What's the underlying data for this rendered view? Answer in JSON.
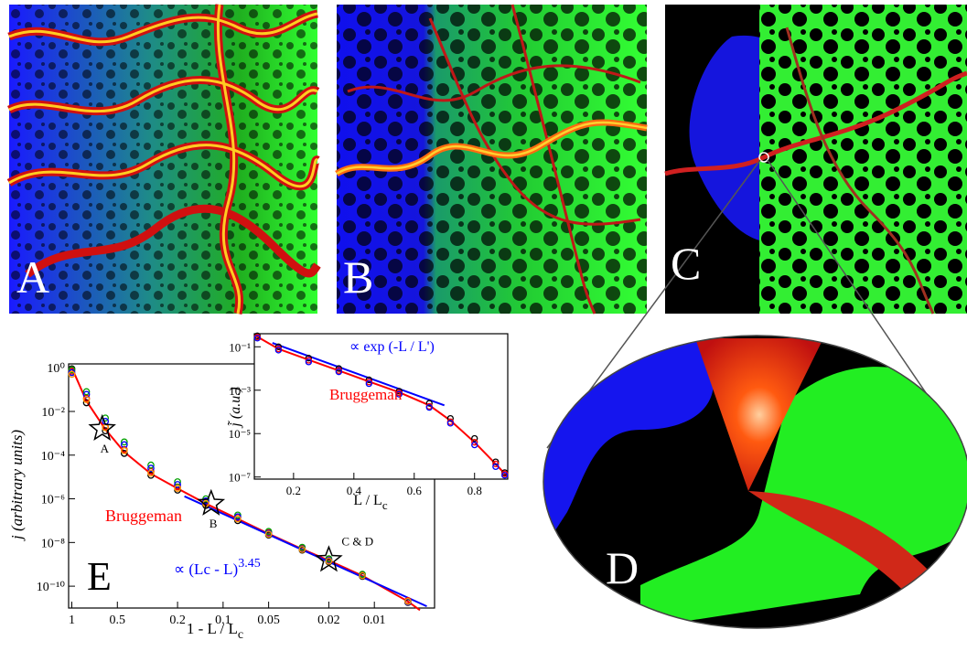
{
  "panels": [
    {
      "label": "A"
    },
    {
      "label": "B"
    },
    {
      "label": "C"
    },
    {
      "label": "D"
    }
  ],
  "chart_data": [
    {
      "type": "scatter",
      "panel_label": "E",
      "xlog": true,
      "ylog": true,
      "xlabel": {
        "text": "1 - L / L",
        "subscript": "c"
      },
      "ylabel": "j  (arbitrary units)",
      "xlim": [
        1.05,
        0.004
      ],
      "ylim": [
        1e-11,
        1.5
      ],
      "xticks": [
        1,
        0.5,
        0.2,
        0.1,
        0.05,
        0.02,
        0.01
      ],
      "yticks": [
        {
          "value": 1,
          "label": "10⁰"
        },
        {
          "value": 0.01,
          "label": "10⁻²"
        },
        {
          "value": 0.0001,
          "label": "10⁻⁴"
        },
        {
          "value": 1e-06,
          "label": "10⁻⁶"
        },
        {
          "value": 1e-08,
          "label": "10⁻⁸"
        },
        {
          "value": 1e-10,
          "label": "10⁻¹⁰"
        }
      ],
      "x": [
        1,
        0.8,
        0.6,
        0.45,
        0.3,
        0.2,
        0.13,
        0.08,
        0.05,
        0.03,
        0.02,
        0.012,
        0.006
      ],
      "series": [
        {
          "color": "#000000",
          "values": [
            0.9,
            0.025,
            0.0013,
            0.00012,
            1.2e-05,
            2.5e-06,
            5e-07,
            1e-07,
            2.2e-08,
            4.5e-09,
            1.3e-09,
            2.8e-10,
            1.8e-11
          ]
        },
        {
          "color": "#ff0000",
          "values": [
            0.7,
            0.04,
            0.002,
            0.00018,
            1.8e-05,
            3.5e-06,
            7e-07,
            1.4e-07,
            2.8e-08,
            5.5e-09,
            1.7e-09,
            3.3e-10,
            2.2e-11
          ]
        },
        {
          "color": "#00a000",
          "values": [
            0.8,
            0.08,
            0.005,
            0.0004,
            3.5e-05,
            6e-06,
            1e-06,
            1.8e-07,
            3.2e-08,
            6e-09,
            1.8e-09,
            3.5e-10,
            2e-11
          ]
        },
        {
          "color": "#0000ff",
          "values": [
            0.6,
            0.06,
            0.0035,
            0.0003,
            2.5e-05,
            4.5e-06,
            8e-07,
            1.5e-07,
            2.6e-08,
            5e-09,
            1.5e-09,
            3e-10,
            1.9e-11
          ]
        },
        {
          "color": "#ff9900",
          "values": [
            0.5,
            0.035,
            0.0018,
            0.00016,
            1.5e-05,
            3e-06,
            6e-07,
            1.2e-07,
            2.4e-08,
            4.8e-09,
            1.4e-09,
            3e-10,
            2e-11
          ]
        }
      ],
      "lines": [
        {
          "name": "Bruggeman",
          "color": "#ff0000",
          "x": [
            1,
            0.8,
            0.6,
            0.45,
            0.3,
            0.2,
            0.13,
            0.08,
            0.05,
            0.03,
            0.02,
            0.012,
            0.006,
            0.005
          ],
          "values": [
            1,
            0.03,
            0.0015,
            0.00014,
            1.4e-05,
            3e-06,
            6e-07,
            1.2e-07,
            2.5e-08,
            5e-09,
            1.5e-09,
            3e-10,
            2e-11,
            8e-12
          ]
        },
        {
          "label": {
            "text": "∝ (Lc - L)",
            "superscript": "3.45"
          },
          "color": "#0000ff",
          "x": [
            0.18,
            0.0045
          ],
          "values": [
            1.3e-06,
            1.2e-11
          ]
        }
      ],
      "markers": [
        {
          "label": "A",
          "x": 0.63,
          "y": 0.0016
        },
        {
          "label": "B",
          "x": 0.12,
          "y": 6e-07
        },
        {
          "label": "C & D",
          "x": 0.02,
          "y": 1.6e-09
        }
      ]
    },
    {
      "type": "scatter",
      "ylog": true,
      "xlabel": {
        "text": "L / L",
        "subscript": "c"
      },
      "ylabel": "j̃  (a.u.)",
      "xlim": [
        0.07,
        0.91
      ],
      "ylim": [
        8e-08,
        0.4
      ],
      "xticks": [
        0.2,
        0.4,
        0.6,
        0.8
      ],
      "yticks": [
        {
          "value": 0.1,
          "label": "10⁻¹"
        },
        {
          "value": 0.001,
          "label": "10⁻³"
        },
        {
          "value": 1e-05,
          "label": "10⁻⁵"
        },
        {
          "value": 1e-07,
          "label": "10⁻⁷"
        }
      ],
      "x": [
        0.08,
        0.15,
        0.25,
        0.35,
        0.45,
        0.55,
        0.65,
        0.72,
        0.8,
        0.87,
        0.9
      ],
      "series": [
        {
          "color": "#000000",
          "values": [
            0.32,
            0.1,
            0.03,
            0.01,
            0.003,
            0.0009,
            0.00025,
            5e-05,
            6e-06,
            5e-07,
            1.6e-07
          ]
        },
        {
          "color": "#ff0000",
          "values": [
            0.28,
            0.08,
            0.024,
            0.008,
            0.0024,
            0.00075,
            0.00018,
            3.5e-05,
            4e-06,
            4e-07,
            1.4e-07
          ]
        },
        {
          "color": "#0000ff",
          "values": [
            0.25,
            0.07,
            0.02,
            0.007,
            0.002,
            0.00065,
            0.00016,
            3e-05,
            3e-06,
            3e-07,
            1.2e-07
          ]
        }
      ],
      "lines": [
        {
          "name": "Bruggeman",
          "color": "#ff0000",
          "x": [
            0.07,
            0.15,
            0.25,
            0.35,
            0.45,
            0.55,
            0.65,
            0.72,
            0.8,
            0.87,
            0.91
          ],
          "values": [
            0.35,
            0.08,
            0.025,
            0.008,
            0.0025,
            0.0008,
            0.0002,
            4e-05,
            4e-06,
            4e-07,
            1e-07
          ]
        },
        {
          "label": {
            "text": "∝ exp (-L / L')"
          },
          "color": "#0000ff",
          "x": [
            0.13,
            0.7
          ],
          "values": [
            0.15,
            0.0002
          ]
        }
      ]
    }
  ]
}
